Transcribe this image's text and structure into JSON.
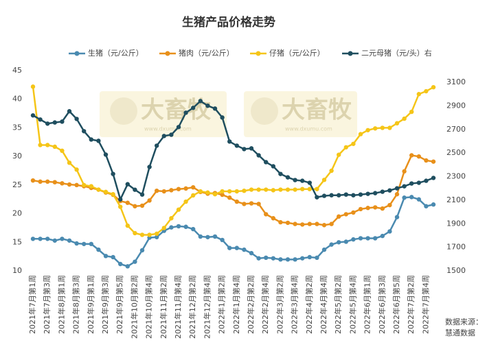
{
  "chart_data": {
    "type": "line",
    "title": "生猪产品价格走势",
    "categories": [
      "2021年7月第1周",
      null,
      "2021年7月第3周",
      null,
      "2021年8月第1周",
      null,
      "2021年8月第3周",
      null,
      "2021年9月第1周",
      null,
      "2021年9月第3周",
      null,
      "2021年9月第5周",
      null,
      "2021年10月第2周",
      null,
      "2021年10月第4周",
      null,
      "2021年11月第2周",
      null,
      "2021年11月第4周",
      null,
      "2021年12月第2周",
      null,
      "2021年12月第4周",
      null,
      "2022年1月第2周",
      null,
      "2022年1月第4周",
      null,
      "2022年2月第2周",
      null,
      "2022年2月第4周",
      null,
      "2022年3月第2周",
      null,
      "2022年3月第4周",
      null,
      "2022年4月第2周",
      null,
      "2022年4月第4周",
      null,
      "2022年5月第2周",
      null,
      "2022年5月第4周",
      null,
      "2022年6月第1周",
      null,
      "2022年6月第3周",
      null,
      "2022年6月第5周",
      null,
      "2022年7月第2周",
      null,
      "2022年7月第4周",
      null
    ],
    "series": [
      {
        "name": "生猪（元/公斤）",
        "color": "#4a8ab0",
        "values": [
          15.6,
          15.6,
          15.6,
          15.3,
          15.6,
          15.3,
          14.8,
          14.7,
          14.7,
          13.7,
          12.6,
          12.4,
          11.2,
          10.8,
          11.6,
          13.6,
          15.8,
          15.9,
          17.0,
          17.6,
          17.8,
          17.7,
          17.3,
          16.0,
          15.9,
          16.0,
          15.4,
          14.0,
          14.0,
          13.7,
          13.1,
          12.2,
          12.3,
          12.2,
          12.0,
          12.0,
          12.0,
          12.2,
          12.4,
          12.3,
          13.7,
          14.6,
          15.0,
          15.1,
          15.5,
          15.7,
          15.7,
          15.7,
          16.1,
          16.9,
          19.4,
          22.8,
          22.9,
          22.5,
          21.3,
          21.6
        ]
      },
      {
        "name": "猪肉（元/公斤）",
        "color": "#e8901a",
        "values": [
          25.8,
          25.6,
          25.6,
          25.5,
          25.3,
          25.1,
          25.0,
          24.8,
          24.5,
          24.2,
          23.7,
          23.3,
          22.2,
          21.9,
          21.3,
          21.4,
          22.3,
          24.0,
          23.9,
          24.1,
          24.3,
          24.4,
          24.6,
          23.8,
          23.5,
          23.6,
          23.3,
          22.8,
          22.1,
          21.7,
          21.8,
          21.7,
          19.9,
          19.2,
          18.5,
          18.4,
          18.2,
          18.1,
          18.2,
          18.2,
          18.0,
          18.2,
          19.5,
          19.9,
          20.2,
          20.8,
          21.0,
          21.1,
          20.9,
          21.5,
          23.4,
          27.4,
          30.2,
          30.0,
          29.3,
          29.1
        ]
      },
      {
        "name": "仔猪（元/公斤）",
        "color": "#f5c518",
        "values": [
          42.2,
          32.0,
          32.0,
          31.7,
          31.0,
          28.9,
          27.7,
          25.0,
          24.8,
          24.2,
          23.8,
          23.4,
          21.2,
          17.9,
          16.6,
          16.3,
          16.3,
          16.5,
          17.5,
          19.2,
          20.7,
          22.1,
          23.2,
          23.9,
          23.7,
          23.4,
          23.9,
          23.9,
          23.9,
          24.0,
          24.2,
          24.2,
          24.2,
          24.1,
          24.2,
          24.2,
          24.2,
          24.3,
          24.3,
          24.3,
          25.9,
          27.5,
          30.3,
          31.6,
          32.2,
          33.9,
          34.6,
          34.9,
          35.0,
          35.0,
          35.8,
          36.6,
          37.8,
          40.9,
          41.4,
          42.1
        ]
      },
      {
        "name": "二元母猪（元/头）右",
        "color": "#1f4e5f",
        "axis": "y2",
        "values": [
          2820,
          2785,
          2750,
          2760,
          2767,
          2855,
          2790,
          2686,
          2615,
          2604,
          2487,
          2323,
          2107,
          2236,
          2189,
          2148,
          2382,
          2563,
          2645,
          2656,
          2721,
          2843,
          2884,
          2942,
          2902,
          2878,
          2802,
          2598,
          2563,
          2534,
          2540,
          2481,
          2423,
          2388,
          2323,
          2294,
          2271,
          2265,
          2248,
          2125,
          2137,
          2142,
          2142,
          2148,
          2142,
          2148,
          2154,
          2160,
          2172,
          2183,
          2201,
          2218,
          2242,
          2248,
          2265,
          2289
        ]
      }
    ],
    "ylim": [
      10,
      45
    ],
    "yticks": [
      10,
      15,
      20,
      25,
      30,
      35,
      40,
      45
    ],
    "y2lim": [
      1500,
      3200
    ],
    "y2ticks": [
      1500,
      1700,
      1900,
      2100,
      2300,
      2500,
      2700,
      2900,
      3100
    ],
    "grid": false,
    "source_lines": [
      "数据来源：",
      "慧通数据"
    ],
    "watermark": "大畜牧",
    "watermark_url": "www.dxumu.com"
  }
}
